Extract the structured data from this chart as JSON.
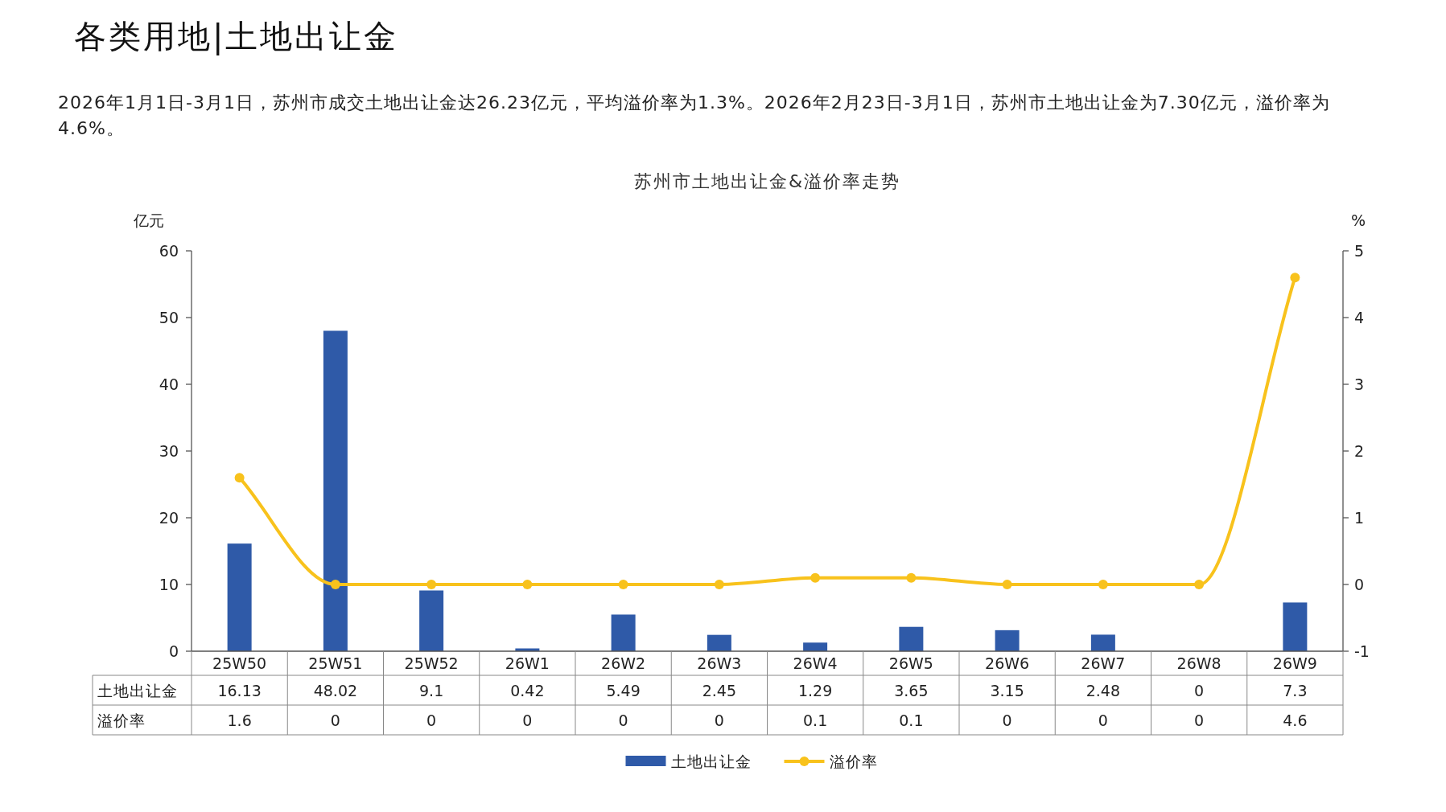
{
  "chart_data": {
    "type": "bar",
    "title": "苏州市土地出让金&溢价率走势",
    "annotations": [
      "各类用地|土地出让金",
      "2026年1月1日-3月1日，苏州市成交土地出让金达26.23亿元，平均溢价率为1.3%。2026年2月23日-3月1日，苏州市土地出让金为7.30亿元，溢价率为4.6%。"
    ],
    "ylabel": "亿元",
    "y2label": "%",
    "categories": [
      "25W50",
      "25W51",
      "25W52",
      "26W1",
      "26W2",
      "26W3",
      "26W4",
      "26W5",
      "26W6",
      "26W7",
      "26W8",
      "26W9"
    ],
    "series": [
      {
        "name": "土地出让金",
        "color": "#2f5aa8",
        "values": [
          16.13,
          48.02,
          9.1,
          0.42,
          5.49,
          2.45,
          1.29,
          3.65,
          3.15,
          2.48,
          0,
          7.3
        ]
      },
      {
        "name": "溢价率",
        "type": "line",
        "axis": "y2",
        "color": "#f8c21c",
        "values": [
          1.6,
          0,
          0,
          0,
          0,
          0,
          0.1,
          0.1,
          0,
          0,
          0,
          4.6
        ]
      }
    ],
    "ylim": [
      0,
      60
    ],
    "yticks": [
      0,
      10,
      20,
      30,
      40,
      50,
      60
    ],
    "y2lim": [
      -1,
      5
    ],
    "y2ticks": [
      -1,
      0,
      1,
      2,
      3,
      4,
      5
    ],
    "data_labels": true,
    "legend": "bottom",
    "grid": false,
    "marker": "circle"
  }
}
